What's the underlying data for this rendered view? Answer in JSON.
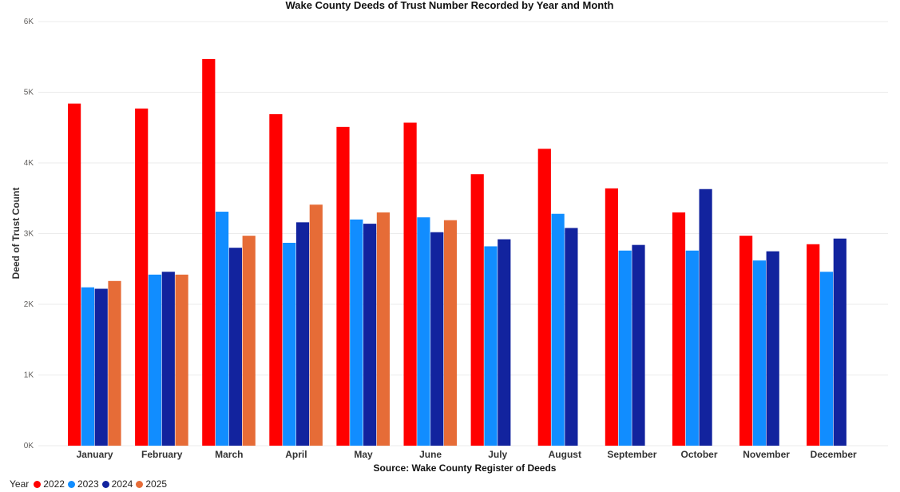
{
  "chart_data": {
    "type": "bar",
    "title": "Wake County Deeds of Trust Number Recorded by Year and Month",
    "xlabel": "Source: Wake County Register of Deeds",
    "ylabel": "Deed of Trust Count",
    "ylim": [
      0,
      6000
    ],
    "y_ticks": [
      0,
      1000,
      2000,
      3000,
      4000,
      5000,
      6000
    ],
    "y_tick_labels": [
      "0K",
      "1K",
      "2K",
      "3K",
      "4K",
      "5K",
      "6K"
    ],
    "grid": true,
    "legend_position": "bottom-left",
    "legend_title": "Year",
    "categories": [
      "January",
      "February",
      "March",
      "April",
      "May",
      "June",
      "July",
      "August",
      "September",
      "October",
      "November",
      "December"
    ],
    "series": [
      {
        "name": "2022",
        "color": "#ff0000",
        "values": [
          4840,
          4770,
          5470,
          4690,
          4510,
          4570,
          3840,
          4200,
          3640,
          3300,
          2970,
          2850
        ]
      },
      {
        "name": "2023",
        "color": "#118dff",
        "values": [
          2240,
          2420,
          3310,
          2870,
          3200,
          3230,
          2820,
          3280,
          2760,
          2760,
          2620,
          2460
        ]
      },
      {
        "name": "2024",
        "color": "#12239e",
        "values": [
          2220,
          2460,
          2800,
          3160,
          3140,
          3020,
          2920,
          3080,
          2840,
          3630,
          2750,
          2930
        ]
      },
      {
        "name": "2025",
        "color": "#e66c37",
        "values": [
          2330,
          2420,
          2970,
          3410,
          3300,
          3190,
          null,
          null,
          null,
          null,
          null,
          null
        ]
      }
    ]
  }
}
